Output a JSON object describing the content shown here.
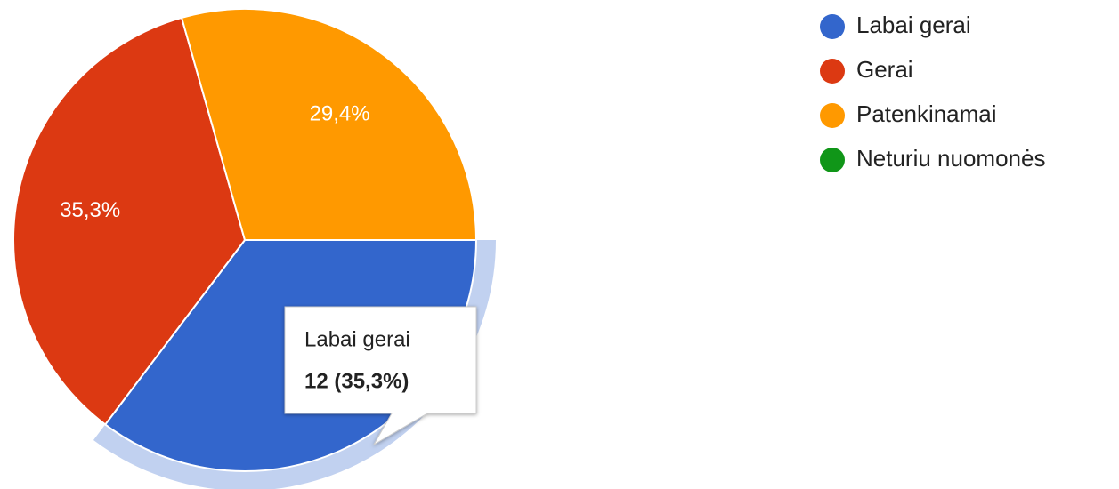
{
  "chart_data": {
    "type": "pie",
    "categories": [
      "Labai gerai",
      "Gerai",
      "Patenkinamai",
      "Neturiu nuomonės"
    ],
    "values": [
      35.3,
      35.3,
      29.4,
      0
    ],
    "value_labels": [
      "35,3%",
      "35,3%",
      "29,4%",
      null
    ],
    "colors": [
      "#3366cc",
      "#dc3912",
      "#ff9900",
      "#109618"
    ],
    "legend": "right",
    "highlight": 0,
    "tooltip": {
      "value": 12,
      "label": "12 (35,3%)"
    }
  }
}
